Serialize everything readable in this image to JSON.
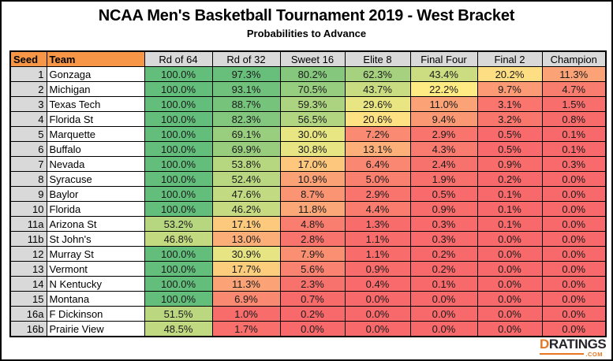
{
  "chart_data": {
    "type": "heatmap",
    "title": "NCAA Men's Basketball Tournament 2019 - West Bracket",
    "subtitle": "Probabilities to Advance",
    "row_header_labels": [
      "Seed",
      "Team"
    ],
    "columns": [
      "Rd of 64",
      "Rd of 32",
      "Sweet 16",
      "Elite 8",
      "Final Four",
      "Final 2",
      "Champion"
    ],
    "value_format": "percent_one_decimal",
    "rows": [
      {
        "seed": "1",
        "team": "Gonzaga",
        "values": [
          100.0,
          97.3,
          80.2,
          62.3,
          43.4,
          20.2,
          11.3
        ]
      },
      {
        "seed": "2",
        "team": "Michigan",
        "values": [
          100.0,
          93.1,
          70.5,
          43.7,
          22.2,
          9.7,
          4.7
        ]
      },
      {
        "seed": "3",
        "team": "Texas Tech",
        "values": [
          100.0,
          88.7,
          59.3,
          29.6,
          11.0,
          3.1,
          1.5
        ]
      },
      {
        "seed": "4",
        "team": "Florida St",
        "values": [
          100.0,
          82.3,
          56.5,
          20.6,
          9.4,
          3.2,
          0.8
        ]
      },
      {
        "seed": "5",
        "team": "Marquette",
        "values": [
          100.0,
          69.1,
          30.0,
          7.2,
          2.9,
          0.5,
          0.1
        ]
      },
      {
        "seed": "6",
        "team": "Buffalo",
        "values": [
          100.0,
          69.9,
          30.8,
          13.1,
          4.3,
          0.5,
          0.1
        ]
      },
      {
        "seed": "7",
        "team": "Nevada",
        "values": [
          100.0,
          53.8,
          17.0,
          6.4,
          2.4,
          0.9,
          0.3
        ]
      },
      {
        "seed": "8",
        "team": "Syracuse",
        "values": [
          100.0,
          52.4,
          10.9,
          5.0,
          1.9,
          0.2,
          0.0
        ]
      },
      {
        "seed": "9",
        "team": "Baylor",
        "values": [
          100.0,
          47.6,
          8.7,
          2.9,
          0.5,
          0.1,
          0.0
        ]
      },
      {
        "seed": "10",
        "team": "Florida",
        "values": [
          100.0,
          46.2,
          11.8,
          4.4,
          0.9,
          0.1,
          0.0
        ]
      },
      {
        "seed": "11a",
        "team": "Arizona St",
        "values": [
          53.2,
          17.1,
          4.8,
          1.3,
          0.3,
          0.1,
          0.0
        ]
      },
      {
        "seed": "11b",
        "team": "St John's",
        "values": [
          46.8,
          13.0,
          2.8,
          1.1,
          0.3,
          0.0,
          0.0
        ]
      },
      {
        "seed": "12",
        "team": "Murray St",
        "values": [
          100.0,
          30.9,
          7.9,
          1.1,
          0.2,
          0.0,
          0.0
        ]
      },
      {
        "seed": "13",
        "team": "Vermont",
        "values": [
          100.0,
          17.7,
          5.6,
          0.9,
          0.2,
          0.0,
          0.0
        ]
      },
      {
        "seed": "14",
        "team": "N Kentucky",
        "values": [
          100.0,
          11.3,
          2.3,
          0.4,
          0.1,
          0.0,
          0.0
        ]
      },
      {
        "seed": "15",
        "team": "Montana",
        "values": [
          100.0,
          6.9,
          0.7,
          0.0,
          0.0,
          0.0,
          0.0
        ]
      },
      {
        "seed": "16a",
        "team": "F Dickinson",
        "values": [
          51.5,
          1.0,
          0.2,
          0.0,
          0.0,
          0.0,
          0.0
        ]
      },
      {
        "seed": "16b",
        "team": "Prairie View",
        "values": [
          48.5,
          1.7,
          0.0,
          0.0,
          0.0,
          0.0,
          0.0
        ]
      }
    ],
    "color_scale": {
      "min_color": "#F8696B",
      "mid_color": "#FFEB84",
      "max_color": "#63BE7B",
      "min_value": 0,
      "midpoint_value": 22,
      "max_value": 100,
      "gamma_below": 1.2,
      "gamma_above": 0.85
    },
    "legend": "none",
    "grid": "on"
  },
  "styles": {
    "header_orange": "#F79646",
    "header_gray": "#D9D9D9",
    "seed_cell_gray": "#D9D9D9",
    "grid_line": "#000000"
  },
  "logo": {
    "prefix": "D",
    "rest": "RATINGS",
    "tld": ".COM",
    "orange": "#E87722",
    "dark": "#26242A"
  }
}
